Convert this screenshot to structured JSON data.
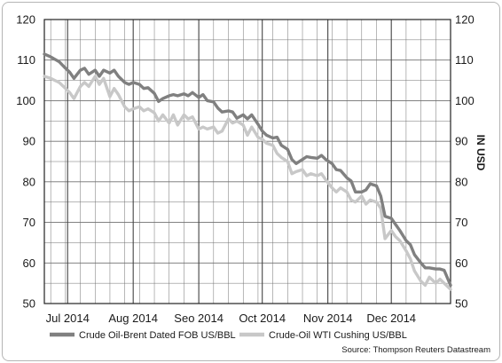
{
  "chart_data": {
    "type": "line",
    "ylabel_right": "IN USD",
    "ylim": [
      50,
      120
    ],
    "yticks": [
      50,
      60,
      70,
      80,
      90,
      100,
      110,
      120
    ],
    "xlim": [
      "2014-06-20",
      "2014-12-29"
    ],
    "x_tick_labels": [
      {
        "label": "Jul 2014",
        "date": "2014-07-01"
      },
      {
        "label": "Aug 2014",
        "date": "2014-08-01"
      },
      {
        "label": "Seo 2014",
        "date": "2014-09-01"
      },
      {
        "label": "Oct 2014",
        "date": "2014-10-01"
      },
      {
        "label": "Nov 2014",
        "date": "2014-11-01"
      },
      {
        "label": "Dec 2014",
        "date": "2014-12-01"
      }
    ],
    "grid": true,
    "legend_position": "bottom-left",
    "source": "Source: Thompson Reuters Datastream",
    "colors": {
      "brent": "#808080",
      "wti": "#c8c8c8",
      "grid": "#707070"
    },
    "series": [
      {
        "name": "Crude Oil-Brent Dated FOB US/BBL",
        "color": "#808080",
        "points": [
          [
            "2014-06-20",
            111.5
          ],
          [
            "2014-06-23",
            110.8
          ],
          [
            "2014-06-25",
            110.2
          ],
          [
            "2014-06-27",
            109.6
          ],
          [
            "2014-06-30",
            108.0
          ],
          [
            "2014-07-02",
            107.0
          ],
          [
            "2014-07-04",
            105.5
          ],
          [
            "2014-07-07",
            107.5
          ],
          [
            "2014-07-09",
            108.0
          ],
          [
            "2014-07-11",
            106.5
          ],
          [
            "2014-07-14",
            107.5
          ],
          [
            "2014-07-16",
            106.0
          ],
          [
            "2014-07-18",
            107.5
          ],
          [
            "2014-07-21",
            106.8
          ],
          [
            "2014-07-23",
            107.5
          ],
          [
            "2014-07-25",
            106.0
          ],
          [
            "2014-07-28",
            104.5
          ],
          [
            "2014-07-30",
            104.0
          ],
          [
            "2014-08-01",
            104.5
          ],
          [
            "2014-08-04",
            104.0
          ],
          [
            "2014-08-06",
            103.0
          ],
          [
            "2014-08-08",
            103.2
          ],
          [
            "2014-08-11",
            101.8
          ],
          [
            "2014-08-13",
            99.8
          ],
          [
            "2014-08-15",
            100.5
          ],
          [
            "2014-08-18",
            101.2
          ],
          [
            "2014-08-20",
            101.5
          ],
          [
            "2014-08-22",
            101.2
          ],
          [
            "2014-08-25",
            101.7
          ],
          [
            "2014-08-27",
            101.2
          ],
          [
            "2014-08-29",
            102.0
          ],
          [
            "2014-09-01",
            100.8
          ],
          [
            "2014-09-03",
            101.5
          ],
          [
            "2014-09-05",
            100.0
          ],
          [
            "2014-09-08",
            99.7
          ],
          [
            "2014-09-10",
            98.2
          ],
          [
            "2014-09-12",
            97.2
          ],
          [
            "2014-09-15",
            97.5
          ],
          [
            "2014-09-17",
            97.2
          ],
          [
            "2014-09-19",
            95.7
          ],
          [
            "2014-09-22",
            96.5
          ],
          [
            "2014-09-24",
            95.5
          ],
          [
            "2014-09-26",
            96.5
          ],
          [
            "2014-09-29",
            94.2
          ],
          [
            "2014-10-01",
            92.5
          ],
          [
            "2014-10-03",
            91.5
          ],
          [
            "2014-10-06",
            90.8
          ],
          [
            "2014-10-08",
            91.0
          ],
          [
            "2014-10-10",
            89.0
          ],
          [
            "2014-10-13",
            88.0
          ],
          [
            "2014-10-15",
            85.5
          ],
          [
            "2014-10-17",
            84.5
          ],
          [
            "2014-10-20",
            85.5
          ],
          [
            "2014-10-22",
            86.2
          ],
          [
            "2014-10-24",
            86.0
          ],
          [
            "2014-10-27",
            85.8
          ],
          [
            "2014-10-29",
            86.5
          ],
          [
            "2014-10-31",
            85.5
          ],
          [
            "2014-11-03",
            84.5
          ],
          [
            "2014-11-05",
            83.0
          ],
          [
            "2014-11-07",
            82.8
          ],
          [
            "2014-11-10",
            81.0
          ],
          [
            "2014-11-12",
            80.2
          ],
          [
            "2014-11-14",
            77.5
          ],
          [
            "2014-11-17",
            77.5
          ],
          [
            "2014-11-19",
            78.0
          ],
          [
            "2014-11-21",
            79.5
          ],
          [
            "2014-11-24",
            79.0
          ],
          [
            "2014-11-26",
            76.5
          ],
          [
            "2014-11-28",
            71.5
          ],
          [
            "2014-12-01",
            71.0
          ],
          [
            "2014-12-03",
            69.5
          ],
          [
            "2014-12-05",
            68.0
          ],
          [
            "2014-12-08",
            65.5
          ],
          [
            "2014-12-10",
            64.5
          ],
          [
            "2014-12-12",
            62.0
          ],
          [
            "2014-12-15",
            60.0
          ],
          [
            "2014-12-17",
            58.8
          ],
          [
            "2014-12-19",
            58.8
          ],
          [
            "2014-12-22",
            58.5
          ],
          [
            "2014-12-24",
            58.5
          ],
          [
            "2014-12-26",
            58.2
          ],
          [
            "2014-12-29",
            54.5
          ]
        ]
      },
      {
        "name": "Crude-Oil WTI Cushing US/BBL",
        "color": "#c8c8c8",
        "points": [
          [
            "2014-06-20",
            106.0
          ],
          [
            "2014-06-23",
            105.5
          ],
          [
            "2014-06-25",
            105.0
          ],
          [
            "2014-06-27",
            104.5
          ],
          [
            "2014-06-30",
            103.0
          ],
          [
            "2014-07-02",
            102.0
          ],
          [
            "2014-07-04",
            100.5
          ],
          [
            "2014-07-07",
            103.5
          ],
          [
            "2014-07-09",
            104.5
          ],
          [
            "2014-07-11",
            103.5
          ],
          [
            "2014-07-14",
            106.0
          ],
          [
            "2014-07-16",
            104.0
          ],
          [
            "2014-07-18",
            105.5
          ],
          [
            "2014-07-21",
            101.0
          ],
          [
            "2014-07-23",
            103.0
          ],
          [
            "2014-07-25",
            101.5
          ],
          [
            "2014-07-28",
            98.5
          ],
          [
            "2014-07-30",
            97.5
          ],
          [
            "2014-08-01",
            98.0
          ],
          [
            "2014-08-04",
            98.5
          ],
          [
            "2014-08-06",
            97.5
          ],
          [
            "2014-08-08",
            98.0
          ],
          [
            "2014-08-11",
            97.0
          ],
          [
            "2014-08-13",
            95.0
          ],
          [
            "2014-08-15",
            96.5
          ],
          [
            "2014-08-18",
            94.5
          ],
          [
            "2014-08-20",
            96.5
          ],
          [
            "2014-08-22",
            94.0
          ],
          [
            "2014-08-25",
            96.5
          ],
          [
            "2014-08-27",
            95.5
          ],
          [
            "2014-08-29",
            96.0
          ],
          [
            "2014-09-01",
            93.0
          ],
          [
            "2014-09-03",
            93.5
          ],
          [
            "2014-09-05",
            93.0
          ],
          [
            "2014-09-08",
            93.5
          ],
          [
            "2014-09-10",
            92.0
          ],
          [
            "2014-09-12",
            92.5
          ],
          [
            "2014-09-15",
            95.5
          ],
          [
            "2014-09-17",
            94.5
          ],
          [
            "2014-09-19",
            95.0
          ],
          [
            "2014-09-22",
            94.0
          ],
          [
            "2014-09-24",
            91.5
          ],
          [
            "2014-09-26",
            93.5
          ],
          [
            "2014-09-29",
            91.0
          ],
          [
            "2014-10-01",
            90.5
          ],
          [
            "2014-10-03",
            89.5
          ],
          [
            "2014-10-06",
            89.0
          ],
          [
            "2014-10-08",
            87.0
          ],
          [
            "2014-10-10",
            86.0
          ],
          [
            "2014-10-13",
            85.0
          ],
          [
            "2014-10-15",
            82.0
          ],
          [
            "2014-10-17",
            82.5
          ],
          [
            "2014-10-20",
            83.0
          ],
          [
            "2014-10-22",
            81.5
          ],
          [
            "2014-10-24",
            82.0
          ],
          [
            "2014-10-27",
            81.5
          ],
          [
            "2014-10-29",
            82.0
          ],
          [
            "2014-10-31",
            80.5
          ],
          [
            "2014-11-03",
            78.5
          ],
          [
            "2014-11-05",
            77.5
          ],
          [
            "2014-11-07",
            78.5
          ],
          [
            "2014-11-10",
            77.5
          ],
          [
            "2014-11-12",
            75.5
          ],
          [
            "2014-11-14",
            75.0
          ],
          [
            "2014-11-17",
            76.5
          ],
          [
            "2014-11-19",
            74.5
          ],
          [
            "2014-11-21",
            75.5
          ],
          [
            "2014-11-24",
            75.0
          ],
          [
            "2014-11-26",
            73.5
          ],
          [
            "2014-11-28",
            66.0
          ],
          [
            "2014-12-01",
            68.0
          ],
          [
            "2014-12-03",
            66.5
          ],
          [
            "2014-12-05",
            65.5
          ],
          [
            "2014-12-08",
            63.0
          ],
          [
            "2014-12-10",
            61.0
          ],
          [
            "2014-12-12",
            58.0
          ],
          [
            "2014-12-15",
            55.5
          ],
          [
            "2014-12-17",
            54.5
          ],
          [
            "2014-12-19",
            56.5
          ],
          [
            "2014-12-22",
            55.0
          ],
          [
            "2014-12-24",
            56.0
          ],
          [
            "2014-12-26",
            55.0
          ],
          [
            "2014-12-29",
            53.5
          ]
        ]
      }
    ]
  }
}
